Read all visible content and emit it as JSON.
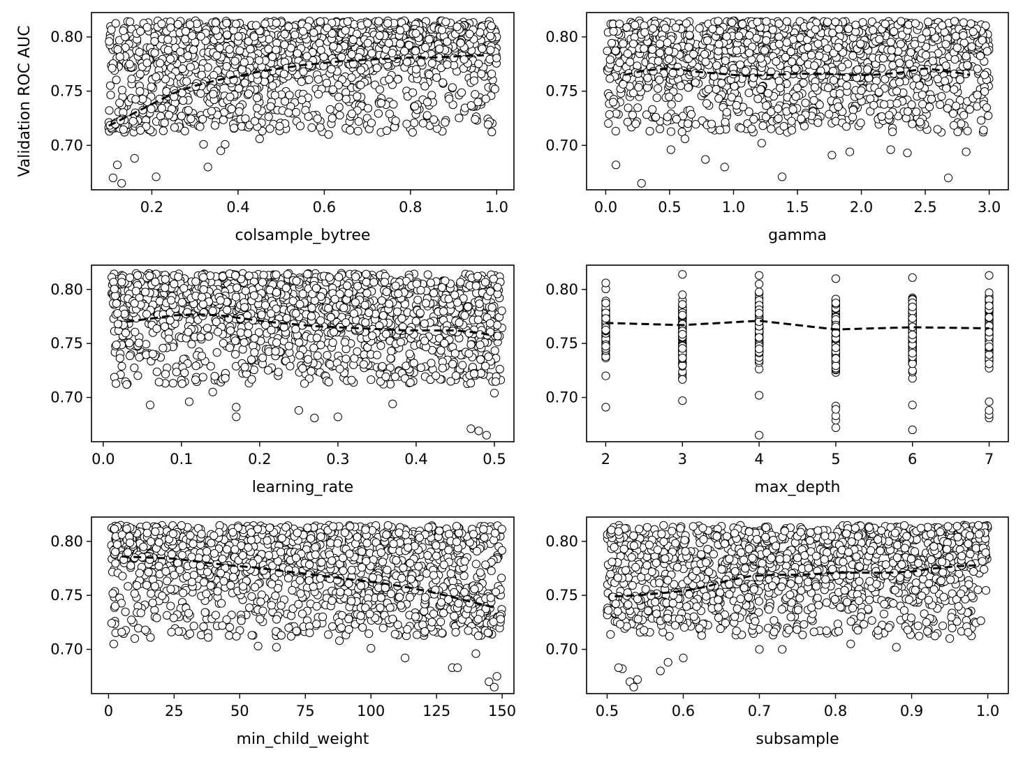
{
  "figure": {
    "ylabel": "Validation ROC AUC",
    "marker_face": "#ffffff",
    "marker_edge": "#000000",
    "trend_color": "#000000"
  },
  "chart_data": [
    {
      "type": "scatter",
      "xlabel": "colsample_bytree",
      "ylabel": "Validation ROC AUC",
      "x_ticks": [
        0.2,
        0.4,
        0.6,
        0.8,
        1.0
      ],
      "x_tick_labels": [
        "0.2",
        "0.4",
        "0.6",
        "0.8",
        "1.0"
      ],
      "y_ticks": [
        0.7,
        0.75,
        0.8
      ],
      "y_tick_labels": [
        "0.70",
        "0.75",
        "0.80"
      ],
      "xlim": [
        0.06,
        1.04
      ],
      "ylim": [
        0.659,
        0.8225
      ],
      "x_range": [
        0.1,
        1.0
      ],
      "y_range": [
        0.665,
        0.815
      ],
      "n_points": 1500,
      "grid": false,
      "legend": "none",
      "trend": {
        "x": [
          0.1,
          0.15,
          0.2,
          0.25,
          0.3,
          0.35,
          0.4,
          0.45,
          0.5,
          0.55,
          0.6,
          0.65,
          0.7,
          0.75,
          0.8,
          0.85,
          0.9,
          0.95,
          0.97
        ],
        "y": [
          0.718,
          0.728,
          0.738,
          0.748,
          0.755,
          0.76,
          0.764,
          0.768,
          0.771,
          0.774,
          0.776,
          0.778,
          0.779,
          0.78,
          0.781,
          0.781,
          0.782,
          0.783,
          0.783
        ]
      },
      "outliers": [
        [
          0.11,
          0.67
        ],
        [
          0.13,
          0.665
        ],
        [
          0.21,
          0.671
        ],
        [
          0.33,
          0.68
        ],
        [
          0.12,
          0.682
        ],
        [
          0.36,
          0.695
        ],
        [
          0.16,
          0.688
        ],
        [
          0.32,
          0.701
        ],
        [
          0.37,
          0.701
        ],
        [
          0.45,
          0.706
        ],
        [
          0.61,
          0.71
        ],
        [
          0.66,
          0.714
        ],
        [
          0.68,
          0.722
        ],
        [
          0.81,
          0.736
        ],
        [
          0.95,
          0.724
        ]
      ]
    },
    {
      "type": "scatter",
      "xlabel": "gamma",
      "ylabel": "",
      "x_ticks": [
        0.0,
        0.5,
        1.0,
        1.5,
        2.0,
        2.5,
        3.0
      ],
      "x_tick_labels": [
        "0.0",
        "0.5",
        "1.0",
        "1.5",
        "2.0",
        "2.5",
        "3.0"
      ],
      "y_ticks": [
        0.7,
        0.75,
        0.8
      ],
      "y_tick_labels": [
        "0.70",
        "0.75",
        "0.80"
      ],
      "xlim": [
        -0.15,
        3.15
      ],
      "ylim": [
        0.659,
        0.8225
      ],
      "x_range": [
        0.0,
        3.0
      ],
      "y_range": [
        0.665,
        0.815
      ],
      "n_points": 1500,
      "grid": false,
      "legend": "none",
      "trend": {
        "x": [
          0.15,
          0.3,
          0.5,
          0.7,
          0.9,
          1.1,
          1.3,
          1.5,
          1.7,
          1.9,
          2.1,
          2.3,
          2.5,
          2.7,
          2.85
        ],
        "y": [
          0.765,
          0.769,
          0.771,
          0.768,
          0.766,
          0.764,
          0.765,
          0.766,
          0.766,
          0.765,
          0.765,
          0.767,
          0.771,
          0.768,
          0.765
        ]
      },
      "outliers": [
        [
          0.28,
          0.665
        ],
        [
          1.38,
          0.671
        ],
        [
          2.68,
          0.67
        ],
        [
          0.08,
          0.682
        ],
        [
          0.93,
          0.68
        ],
        [
          0.51,
          0.696
        ],
        [
          1.91,
          0.694
        ],
        [
          2.23,
          0.696
        ],
        [
          2.36,
          0.693
        ],
        [
          2.82,
          0.694
        ],
        [
          1.77,
          0.691
        ],
        [
          0.78,
          0.687
        ],
        [
          0.62,
          0.706
        ],
        [
          1.22,
          0.702
        ]
      ]
    },
    {
      "type": "scatter",
      "xlabel": "learning_rate",
      "ylabel": "",
      "x_ticks": [
        0.0,
        0.1,
        0.2,
        0.3,
        0.4,
        0.5
      ],
      "x_tick_labels": [
        "0.0",
        "0.1",
        "0.2",
        "0.3",
        "0.4",
        "0.5"
      ],
      "y_ticks": [
        0.7,
        0.75,
        0.8
      ],
      "y_tick_labels": [
        "0.70",
        "0.75",
        "0.80"
      ],
      "xlim": [
        -0.015,
        0.525
      ],
      "ylim": [
        0.659,
        0.8225
      ],
      "x_range": [
        0.01,
        0.51
      ],
      "y_range": [
        0.665,
        0.815
      ],
      "n_points": 1500,
      "grid": false,
      "legend": "none",
      "trend": {
        "x": [
          0.03,
          0.06,
          0.09,
          0.12,
          0.15,
          0.18,
          0.21,
          0.24,
          0.27,
          0.3,
          0.33,
          0.36,
          0.39,
          0.42,
          0.45,
          0.48,
          0.5
        ],
        "y": [
          0.77,
          0.773,
          0.776,
          0.777,
          0.776,
          0.773,
          0.77,
          0.768,
          0.766,
          0.765,
          0.764,
          0.763,
          0.762,
          0.762,
          0.762,
          0.76,
          0.757
        ]
      },
      "outliers": [
        [
          0.06,
          0.693
        ],
        [
          0.11,
          0.696
        ],
        [
          0.17,
          0.682
        ],
        [
          0.17,
          0.691
        ],
        [
          0.25,
          0.688
        ],
        [
          0.27,
          0.681
        ],
        [
          0.3,
          0.682
        ],
        [
          0.37,
          0.694
        ],
        [
          0.47,
          0.671
        ],
        [
          0.48,
          0.669
        ],
        [
          0.49,
          0.665
        ],
        [
          0.5,
          0.704
        ],
        [
          0.03,
          0.712
        ],
        [
          0.14,
          0.705
        ]
      ]
    },
    {
      "type": "scatter",
      "xlabel": "max_depth",
      "ylabel": "",
      "x_ticks": [
        2,
        3,
        4,
        5,
        6,
        7
      ],
      "x_tick_labels": [
        "2",
        "3",
        "4",
        "5",
        "6",
        "7"
      ],
      "y_ticks": [
        0.7,
        0.75,
        0.8
      ],
      "y_tick_labels": [
        "0.70",
        "0.75",
        "0.80"
      ],
      "xlim": [
        1.75,
        7.25
      ],
      "ylim": [
        0.659,
        0.8225
      ],
      "x_categories": [
        2,
        3,
        4,
        5,
        6,
        7
      ],
      "column_ranges": [
        [
          0.72,
          0.806
        ],
        [
          0.697,
          0.814
        ],
        [
          0.702,
          0.813
        ],
        [
          0.692,
          0.81
        ],
        [
          0.693,
          0.811
        ],
        [
          0.696,
          0.813
        ]
      ],
      "points_per_column": 110,
      "grid": false,
      "legend": "none",
      "trend": {
        "x": [
          2,
          3,
          4,
          5,
          6,
          7
        ],
        "y": [
          0.769,
          0.767,
          0.771,
          0.763,
          0.765,
          0.764
        ]
      },
      "outliers": [
        [
          2,
          0.691
        ],
        [
          4,
          0.665
        ],
        [
          5,
          0.672
        ],
        [
          5,
          0.679
        ],
        [
          5,
          0.683
        ],
        [
          5,
          0.689
        ],
        [
          6,
          0.67
        ],
        [
          7,
          0.681
        ],
        [
          7,
          0.684
        ],
        [
          7,
          0.688
        ]
      ]
    },
    {
      "type": "scatter",
      "xlabel": "min_child_weight",
      "ylabel": "",
      "x_ticks": [
        0,
        25,
        50,
        75,
        100,
        125,
        150
      ],
      "x_tick_labels": [
        "0",
        "25",
        "50",
        "75",
        "100",
        "125",
        "150"
      ],
      "y_ticks": [
        0.7,
        0.75,
        0.8
      ],
      "y_tick_labels": [
        "0.70",
        "0.75",
        "0.80"
      ],
      "xlim": [
        -6.5,
        154.5
      ],
      "ylim": [
        0.659,
        0.8225
      ],
      "x_range": [
        1,
        150
      ],
      "y_range": [
        0.665,
        0.815
      ],
      "n_points": 1500,
      "grid": false,
      "legend": "none",
      "trend": {
        "x": [
          5,
          15,
          25,
          35,
          45,
          55,
          65,
          75,
          85,
          95,
          105,
          115,
          125,
          135,
          145,
          148
        ],
        "y": [
          0.786,
          0.785,
          0.784,
          0.781,
          0.778,
          0.776,
          0.773,
          0.77,
          0.767,
          0.764,
          0.761,
          0.757,
          0.752,
          0.746,
          0.74,
          0.738
        ]
      },
      "outliers": [
        [
          2,
          0.705
        ],
        [
          5,
          0.716
        ],
        [
          10,
          0.71
        ],
        [
          14,
          0.718
        ],
        [
          16,
          0.711
        ],
        [
          24,
          0.716
        ],
        [
          38,
          0.711
        ],
        [
          57,
          0.703
        ],
        [
          64,
          0.702
        ],
        [
          88,
          0.708
        ],
        [
          100,
          0.701
        ],
        [
          113,
          0.692
        ],
        [
          131,
          0.683
        ],
        [
          133,
          0.683
        ],
        [
          140,
          0.696
        ],
        [
          145,
          0.67
        ],
        [
          147,
          0.665
        ],
        [
          148,
          0.675
        ]
      ]
    },
    {
      "type": "scatter",
      "xlabel": "subsample",
      "ylabel": "",
      "x_ticks": [
        0.5,
        0.6,
        0.7,
        0.8,
        0.9,
        1.0
      ],
      "x_tick_labels": [
        "0.5",
        "0.6",
        "0.7",
        "0.8",
        "0.9",
        "1.0"
      ],
      "y_ticks": [
        0.7,
        0.75,
        0.8
      ],
      "y_tick_labels": [
        "0.70",
        "0.75",
        "0.80"
      ],
      "xlim": [
        0.473,
        1.027
      ],
      "ylim": [
        0.659,
        0.8225
      ],
      "x_range": [
        0.5,
        1.0
      ],
      "y_range": [
        0.665,
        0.815
      ],
      "n_points": 1500,
      "grid": false,
      "legend": "none",
      "trend": {
        "x": [
          0.51,
          0.54,
          0.57,
          0.6,
          0.63,
          0.66,
          0.69,
          0.72,
          0.75,
          0.78,
          0.81,
          0.84,
          0.87,
          0.9,
          0.93,
          0.96,
          0.99
        ],
        "y": [
          0.749,
          0.75,
          0.752,
          0.754,
          0.758,
          0.764,
          0.768,
          0.769,
          0.769,
          0.77,
          0.771,
          0.771,
          0.771,
          0.772,
          0.775,
          0.777,
          0.778
        ]
      },
      "outliers": [
        [
          0.52,
          0.682
        ],
        [
          0.53,
          0.67
        ],
        [
          0.535,
          0.665
        ],
        [
          0.54,
          0.672
        ],
        [
          0.515,
          0.683
        ],
        [
          0.57,
          0.68
        ],
        [
          0.58,
          0.688
        ],
        [
          0.6,
          0.692
        ],
        [
          0.7,
          0.7
        ],
        [
          0.73,
          0.7
        ],
        [
          0.82,
          0.705
        ],
        [
          0.88,
          0.702
        ],
        [
          0.95,
          0.71
        ]
      ]
    }
  ]
}
